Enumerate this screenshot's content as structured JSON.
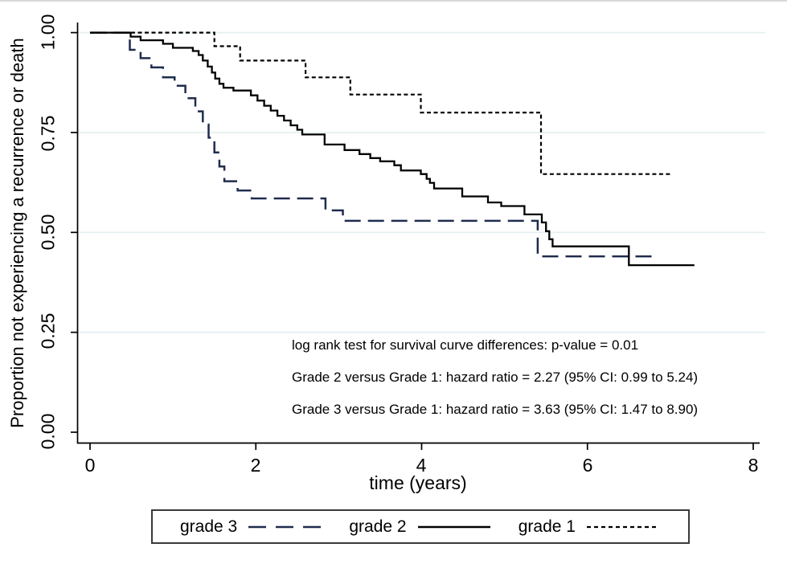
{
  "chart_data": {
    "type": "line",
    "subtype": "kaplan-meier-step-survival",
    "title": "",
    "xlabel": "time (years)",
    "ylabel": "Proportion not experiencing a recurrence or death",
    "xlim": [
      0,
      8
    ],
    "ylim": [
      0,
      1
    ],
    "grid": "horizontal-light",
    "legend_position": "bottom",
    "xticks": [
      0,
      2,
      4,
      6,
      8
    ],
    "xtick_labels": [
      "0",
      "2",
      "4",
      "6",
      "8"
    ],
    "yticks": [
      1.0,
      0.75,
      0.5,
      0.25,
      0.0
    ],
    "ytick_labels": [
      "1.00",
      "0.75",
      "0.50",
      "0.25",
      "0.00"
    ],
    "colors": {
      "grid": "#e6eff1",
      "axis": "#000000",
      "navy": "#202c4e",
      "black": "#000000"
    },
    "series": [
      {
        "name": "grade 3",
        "color": "#202c4e",
        "line_style": "long-dash",
        "end_time": 6.78,
        "steps": [
          [
            0,
            1.0
          ],
          [
            0.48,
            0.957
          ],
          [
            0.61,
            0.936
          ],
          [
            0.74,
            0.913
          ],
          [
            0.88,
            0.888
          ],
          [
            1.02,
            0.867
          ],
          [
            1.15,
            0.836
          ],
          [
            1.27,
            0.803
          ],
          [
            1.36,
            0.77
          ],
          [
            1.43,
            0.737
          ],
          [
            1.5,
            0.7
          ],
          [
            1.56,
            0.665
          ],
          [
            1.62,
            0.628
          ],
          [
            1.78,
            0.605
          ],
          [
            1.95,
            0.585
          ],
          [
            2.84,
            0.555
          ],
          [
            3.05,
            0.529
          ],
          [
            5.4,
            0.44
          ]
        ]
      },
      {
        "name": "grade 2",
        "color": "#000000",
        "line_style": "solid",
        "end_time": 7.29,
        "steps": [
          [
            0,
            1.0
          ],
          [
            0.49,
            0.99
          ],
          [
            0.61,
            0.981
          ],
          [
            0.88,
            0.972
          ],
          [
            1.0,
            0.962
          ],
          [
            1.24,
            0.954
          ],
          [
            1.31,
            0.944
          ],
          [
            1.36,
            0.93
          ],
          [
            1.42,
            0.915
          ],
          [
            1.47,
            0.9
          ],
          [
            1.51,
            0.885
          ],
          [
            1.56,
            0.872
          ],
          [
            1.61,
            0.862
          ],
          [
            1.73,
            0.855
          ],
          [
            1.94,
            0.843
          ],
          [
            2.02,
            0.83
          ],
          [
            2.1,
            0.817
          ],
          [
            2.18,
            0.805
          ],
          [
            2.26,
            0.792
          ],
          [
            2.34,
            0.78
          ],
          [
            2.42,
            0.768
          ],
          [
            2.5,
            0.757
          ],
          [
            2.56,
            0.745
          ],
          [
            2.83,
            0.72
          ],
          [
            3.07,
            0.706
          ],
          [
            3.25,
            0.696
          ],
          [
            3.38,
            0.686
          ],
          [
            3.5,
            0.678
          ],
          [
            3.67,
            0.668
          ],
          [
            3.75,
            0.655
          ],
          [
            3.99,
            0.646
          ],
          [
            4.06,
            0.634
          ],
          [
            4.1,
            0.624
          ],
          [
            4.15,
            0.61
          ],
          [
            4.49,
            0.59
          ],
          [
            4.8,
            0.575
          ],
          [
            4.96,
            0.566
          ],
          [
            5.24,
            0.545
          ],
          [
            5.45,
            0.525
          ],
          [
            5.5,
            0.503
          ],
          [
            5.54,
            0.483
          ],
          [
            5.58,
            0.465
          ],
          [
            6.5,
            0.418
          ]
        ]
      },
      {
        "name": "grade 1",
        "color": "#000000",
        "line_style": "short-dash",
        "end_time": 7.0,
        "steps": [
          [
            0,
            1.0
          ],
          [
            1.5,
            0.966
          ],
          [
            1.81,
            0.93
          ],
          [
            2.6,
            0.888
          ],
          [
            3.14,
            0.845
          ],
          [
            3.99,
            0.8
          ],
          [
            5.44,
            0.646
          ]
        ]
      }
    ],
    "annotations": [
      "log rank test for survival curve differences: p-value = 0.01",
      "Grade 2 versus Grade 1: hazard ratio = 2.27 (95% CI: 0.99 to 5.24)",
      "Grade 3 versus Grade 1: hazard ratio = 3.63 (95% CI: 1.47 to 8.90)"
    ]
  }
}
